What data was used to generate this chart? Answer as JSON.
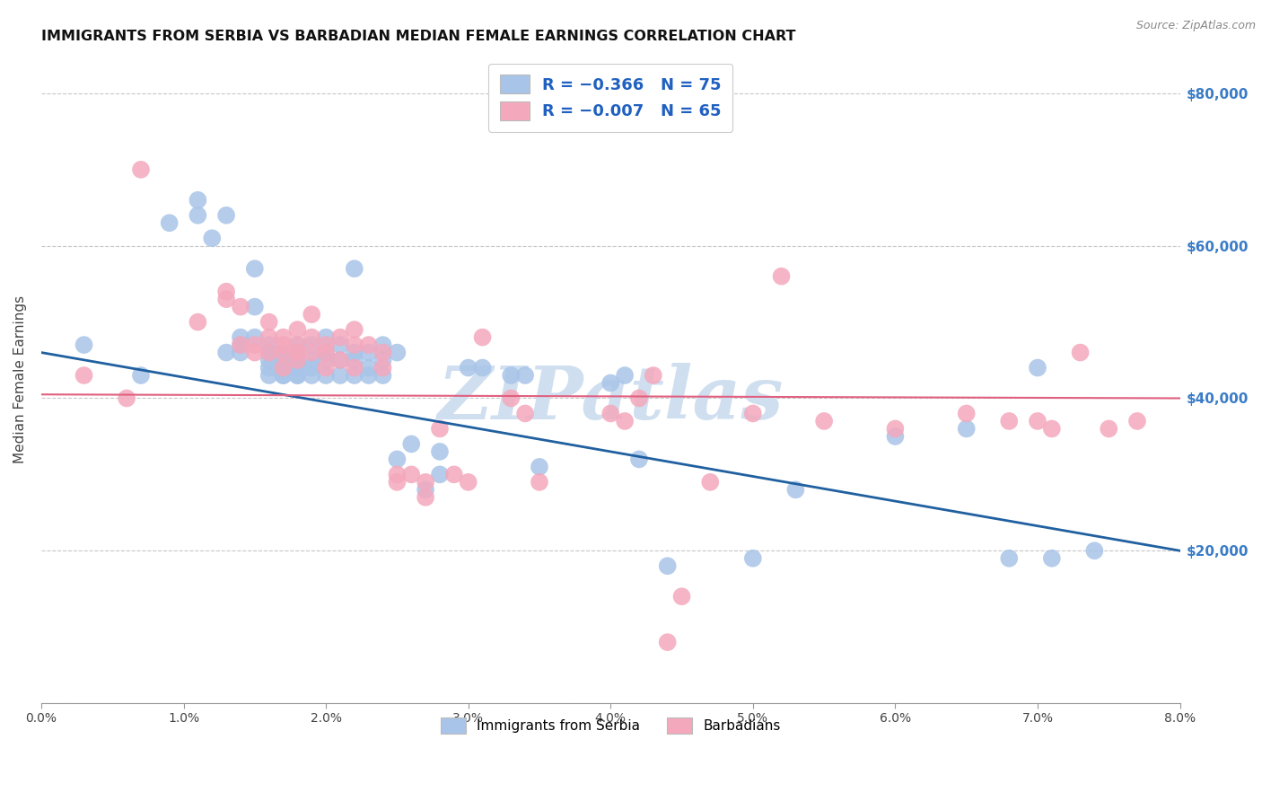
{
  "title": "IMMIGRANTS FROM SERBIA VS BARBADIAN MEDIAN FEMALE EARNINGS CORRELATION CHART",
  "source": "Source: ZipAtlas.com",
  "ylabel": "Median Female Earnings",
  "xlim": [
    0.0,
    0.08
  ],
  "ylim": [
    0,
    85000
  ],
  "legend_blue_label": "Immigrants from Serbia",
  "legend_pink_label": "Barbadians",
  "legend_r_blue": "-0.366",
  "legend_n_blue": "75",
  "legend_r_pink": "-0.007",
  "legend_n_pink": "65",
  "color_blue": "#a8c4e8",
  "color_pink": "#f4a8bc",
  "line_blue": "#2060a0",
  "line_pink": "#e06080",
  "watermark": "ZIPatlas",
  "watermark_color": "#d0dff0",
  "blue_trend_x": [
    0.0,
    0.08
  ],
  "blue_trend_y": [
    46000,
    20000
  ],
  "pink_trend_x": [
    0.0,
    0.08
  ],
  "pink_trend_y": [
    40500,
    40000
  ],
  "blue_scatter_x": [
    0.003,
    0.007,
    0.009,
    0.011,
    0.011,
    0.012,
    0.013,
    0.013,
    0.014,
    0.014,
    0.014,
    0.015,
    0.015,
    0.015,
    0.016,
    0.016,
    0.016,
    0.016,
    0.016,
    0.017,
    0.017,
    0.017,
    0.017,
    0.017,
    0.017,
    0.018,
    0.018,
    0.018,
    0.018,
    0.018,
    0.018,
    0.019,
    0.019,
    0.019,
    0.019,
    0.02,
    0.02,
    0.02,
    0.02,
    0.021,
    0.021,
    0.021,
    0.022,
    0.022,
    0.022,
    0.022,
    0.023,
    0.023,
    0.023,
    0.024,
    0.024,
    0.024,
    0.025,
    0.025,
    0.026,
    0.027,
    0.028,
    0.028,
    0.03,
    0.031,
    0.033,
    0.034,
    0.035,
    0.04,
    0.041,
    0.042,
    0.044,
    0.05,
    0.053,
    0.06,
    0.065,
    0.068,
    0.07,
    0.071,
    0.074
  ],
  "blue_scatter_y": [
    47000,
    43000,
    63000,
    64000,
    66000,
    61000,
    64000,
    46000,
    48000,
    47000,
    46000,
    57000,
    52000,
    48000,
    47000,
    46000,
    45000,
    44000,
    43000,
    46000,
    46000,
    45000,
    44000,
    43000,
    43000,
    47000,
    46000,
    45000,
    44000,
    43000,
    43000,
    47000,
    45000,
    44000,
    43000,
    48000,
    46000,
    45000,
    43000,
    47000,
    45000,
    43000,
    57000,
    46000,
    45000,
    43000,
    46000,
    44000,
    43000,
    47000,
    45000,
    43000,
    46000,
    32000,
    34000,
    28000,
    33000,
    30000,
    44000,
    44000,
    43000,
    43000,
    31000,
    42000,
    43000,
    32000,
    18000,
    19000,
    28000,
    35000,
    36000,
    19000,
    44000,
    19000,
    20000
  ],
  "pink_scatter_x": [
    0.003,
    0.006,
    0.007,
    0.011,
    0.013,
    0.013,
    0.014,
    0.014,
    0.015,
    0.015,
    0.016,
    0.016,
    0.016,
    0.017,
    0.017,
    0.017,
    0.017,
    0.018,
    0.018,
    0.018,
    0.018,
    0.019,
    0.019,
    0.019,
    0.02,
    0.02,
    0.02,
    0.021,
    0.021,
    0.022,
    0.022,
    0.022,
    0.023,
    0.024,
    0.024,
    0.025,
    0.025,
    0.026,
    0.027,
    0.027,
    0.028,
    0.029,
    0.03,
    0.031,
    0.033,
    0.034,
    0.035,
    0.04,
    0.041,
    0.042,
    0.043,
    0.044,
    0.045,
    0.047,
    0.05,
    0.052,
    0.055,
    0.06,
    0.065,
    0.068,
    0.07,
    0.071,
    0.073,
    0.075,
    0.077
  ],
  "pink_scatter_y": [
    43000,
    40000,
    70000,
    50000,
    54000,
    53000,
    52000,
    47000,
    47000,
    46000,
    46000,
    50000,
    48000,
    48000,
    47000,
    46000,
    44000,
    49000,
    47000,
    46000,
    45000,
    51000,
    48000,
    46000,
    47000,
    46000,
    44000,
    48000,
    45000,
    49000,
    47000,
    44000,
    47000,
    46000,
    44000,
    30000,
    29000,
    30000,
    29000,
    27000,
    36000,
    30000,
    29000,
    48000,
    40000,
    38000,
    29000,
    38000,
    37000,
    40000,
    43000,
    8000,
    14000,
    29000,
    38000,
    56000,
    37000,
    36000,
    38000,
    37000,
    37000,
    36000,
    46000,
    36000,
    37000
  ]
}
